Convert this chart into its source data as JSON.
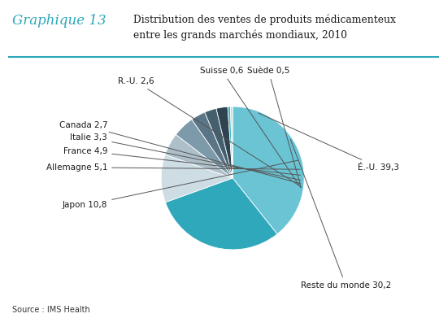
{
  "title_label": "Graphique 13",
  "title_main": "Distribution des ventes de produits médicamenteux\nentre les grands marchés mondiaux, 2010",
  "source": "Source : IMS Health",
  "slices": [
    {
      "label": "É.-U. 39,3",
      "value": 39.3,
      "color": "#6ac4d4"
    },
    {
      "label": "Reste du monde 30,2",
      "value": 30.2,
      "color": "#2fa8bb"
    },
    {
      "label": "Japon 10,8",
      "value": 10.8,
      "color": "#cddde3"
    },
    {
      "label": "Allemagne 5,1",
      "value": 5.1,
      "color": "#adbfc9"
    },
    {
      "label": "France 4,9",
      "value": 4.9,
      "color": "#7d9aaa"
    },
    {
      "label": "Italie 3,3",
      "value": 3.3,
      "color": "#5a7585"
    },
    {
      "label": "Canada 2,7",
      "value": 2.7,
      "color": "#445f6d"
    },
    {
      "label": "R.-U. 2,6",
      "value": 2.6,
      "color": "#2f4450"
    },
    {
      "label": "Suisse 0,6",
      "value": 0.6,
      "color": "#3ab4c0"
    },
    {
      "label": "Suède 0,5",
      "value": 0.5,
      "color": "#b8dde0"
    }
  ],
  "background_color": "#ffffff",
  "header_teal": "#2aa8b8",
  "border_teal": "#2aa8b8"
}
